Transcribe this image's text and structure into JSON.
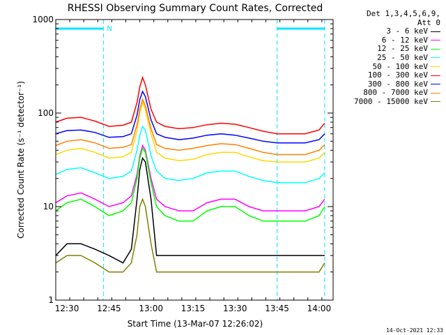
{
  "chart_data": {
    "type": "line",
    "title": "RHESSI Observing Summary Count Rates, Corrected",
    "xlabel": "Start Time (13-Mar-07 12:26:02)",
    "ylabel": "Corrected Count Rate (s⁻¹ detector⁻¹)",
    "yscale": "log",
    "ylim": [
      1,
      1000
    ],
    "xlim": [
      "12:26",
      "14:05"
    ],
    "x_ticks": [
      "12:30",
      "12:45",
      "13:00",
      "13:15",
      "13:30",
      "13:45",
      "14:00"
    ],
    "y_ticks": [
      "1",
      "10",
      "100",
      "1000"
    ],
    "legend_header": [
      "Det 1,3,4,5,6,9,",
      "Att 0"
    ],
    "legend_position": "right",
    "flags": {
      "label": "N",
      "intervals": [
        [
          "12:26",
          "12:43"
        ],
        [
          "13:45",
          "14:02"
        ]
      ],
      "vertical_lines": [
        "12:43",
        "13:45",
        "14:02"
      ],
      "color": "#00e5ff"
    },
    "x": [
      "12:26",
      "12:30",
      "12:35",
      "12:40",
      "12:45",
      "12:50",
      "12:53",
      "12:55",
      "12:56",
      "12:57",
      "12:58",
      "13:00",
      "13:02",
      "13:05",
      "13:10",
      "13:15",
      "13:20",
      "13:25",
      "13:30",
      "13:35",
      "13:40",
      "13:45",
      "13:50",
      "13:55",
      "14:00",
      "14:02"
    ],
    "series": [
      {
        "name": "3 - 6 keV",
        "color": "#000000",
        "values": [
          3,
          4,
          4,
          3.5,
          3,
          2.5,
          3.5,
          12,
          25,
          33,
          30,
          12,
          3,
          3,
          3,
          3,
          3,
          3,
          3,
          3,
          3,
          3,
          3,
          3,
          3,
          3
        ]
      },
      {
        "name": "6 - 12 keV",
        "color": "#ff00ff",
        "values": [
          11,
          13,
          14,
          12,
          10,
          11,
          13,
          22,
          35,
          45,
          40,
          20,
          12,
          10,
          9,
          9,
          11,
          12,
          12,
          10,
          9,
          9,
          9,
          9,
          10,
          12
        ]
      },
      {
        "name": "12 - 25 keV",
        "color": "#00ff00",
        "values": [
          9,
          11,
          12,
          10,
          8,
          9,
          11,
          20,
          33,
          42,
          38,
          18,
          10,
          8,
          7,
          7,
          9,
          10,
          10,
          8,
          7,
          7,
          7,
          7,
          8,
          10
        ]
      },
      {
        "name": "25 - 50 keV",
        "color": "#00ffff",
        "values": [
          22,
          25,
          26,
          23,
          20,
          21,
          24,
          40,
          58,
          72,
          65,
          35,
          24,
          20,
          19,
          20,
          23,
          24,
          24,
          21,
          19,
          18,
          18,
          18,
          20,
          23
        ]
      },
      {
        "name": "50 - 100 keV",
        "color": "#ffd700",
        "values": [
          36,
          40,
          42,
          38,
          33,
          34,
          38,
          65,
          100,
          130,
          110,
          60,
          38,
          33,
          31,
          32,
          36,
          38,
          38,
          34,
          31,
          30,
          30,
          30,
          33,
          38
        ]
      },
      {
        "name": "100 - 300 keV",
        "color": "#ff0000",
        "values": [
          80,
          88,
          90,
          82,
          72,
          74,
          80,
          130,
          190,
          240,
          200,
          110,
          80,
          72,
          68,
          70,
          75,
          78,
          76,
          70,
          64,
          60,
          60,
          60,
          66,
          78
        ]
      },
      {
        "name": "300 - 800 keV",
        "color": "#0000ff",
        "values": [
          60,
          65,
          66,
          62,
          55,
          56,
          60,
          95,
          140,
          170,
          150,
          85,
          60,
          55,
          52,
          54,
          58,
          60,
          58,
          54,
          50,
          48,
          48,
          48,
          52,
          60
        ]
      },
      {
        "name": "800 - 7000 keV",
        "color": "#ff8000",
        "values": [
          45,
          50,
          52,
          48,
          42,
          43,
          46,
          75,
          110,
          140,
          120,
          68,
          46,
          42,
          40,
          42,
          45,
          47,
          46,
          42,
          38,
          36,
          36,
          36,
          40,
          46
        ]
      },
      {
        "name": "7000 - 15000 keV",
        "color": "#808000",
        "values": [
          2.5,
          3,
          3,
          2.5,
          2,
          2,
          2.5,
          5,
          10,
          12,
          10,
          4,
          2,
          2,
          2,
          2,
          2,
          2,
          2,
          2,
          2,
          2,
          2,
          2,
          2,
          2.5
        ]
      }
    ]
  },
  "timestamp": "14-Oct-2021 12:33"
}
